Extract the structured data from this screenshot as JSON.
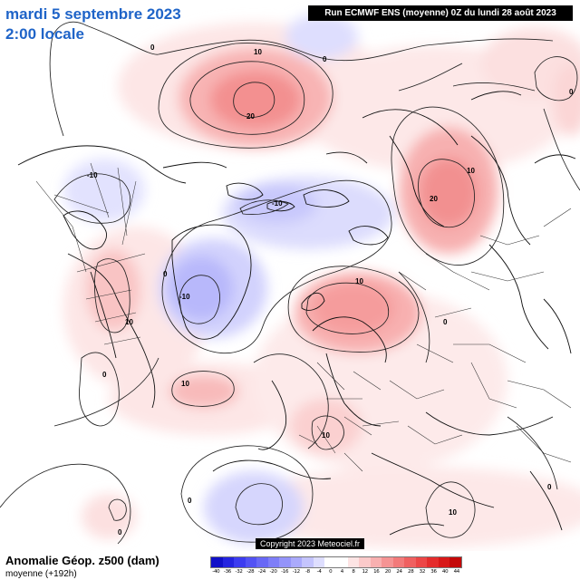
{
  "header": {
    "date": "mardi 5 septembre 2023",
    "time": "2:00 locale",
    "run": "Run ECMWF ENS (moyenne) 0Z du lundi 28 août 2023"
  },
  "footer": {
    "field": "Anomalie Géop. z500 (dam)",
    "subtitle": "moyenne  (+192h)",
    "copyright": "Copyright 2023 Meteociel.fr"
  },
  "legend": {
    "values": [
      "-40",
      "-36",
      "-32",
      "-28",
      "-24",
      "-20",
      "-16",
      "-12",
      "-8",
      "-4",
      "0",
      "4",
      "8",
      "12",
      "16",
      "20",
      "24",
      "28",
      "32",
      "36",
      "40",
      "44"
    ],
    "colors": [
      "#1010c8",
      "#2424e0",
      "#3c3cf0",
      "#5252f4",
      "#6868f6",
      "#7e7ef8",
      "#9494fa",
      "#aaaafc",
      "#c4c4fd",
      "#dedefe",
      "#ffffff",
      "#ffffff",
      "#fde4e4",
      "#fbcaca",
      "#f8b0b0",
      "#f59494",
      "#f27a7a",
      "#ef6060",
      "#ec4646",
      "#e42c2c",
      "#d81818",
      "#c40808"
    ]
  },
  "contour_labels": [
    "0",
    "10",
    "0",
    "20",
    "10",
    "20",
    "10",
    "0",
    "10",
    "10",
    "0",
    "10",
    "-10",
    "-10",
    "-10",
    "0",
    "10",
    "0",
    "0",
    "0",
    "0"
  ]
}
